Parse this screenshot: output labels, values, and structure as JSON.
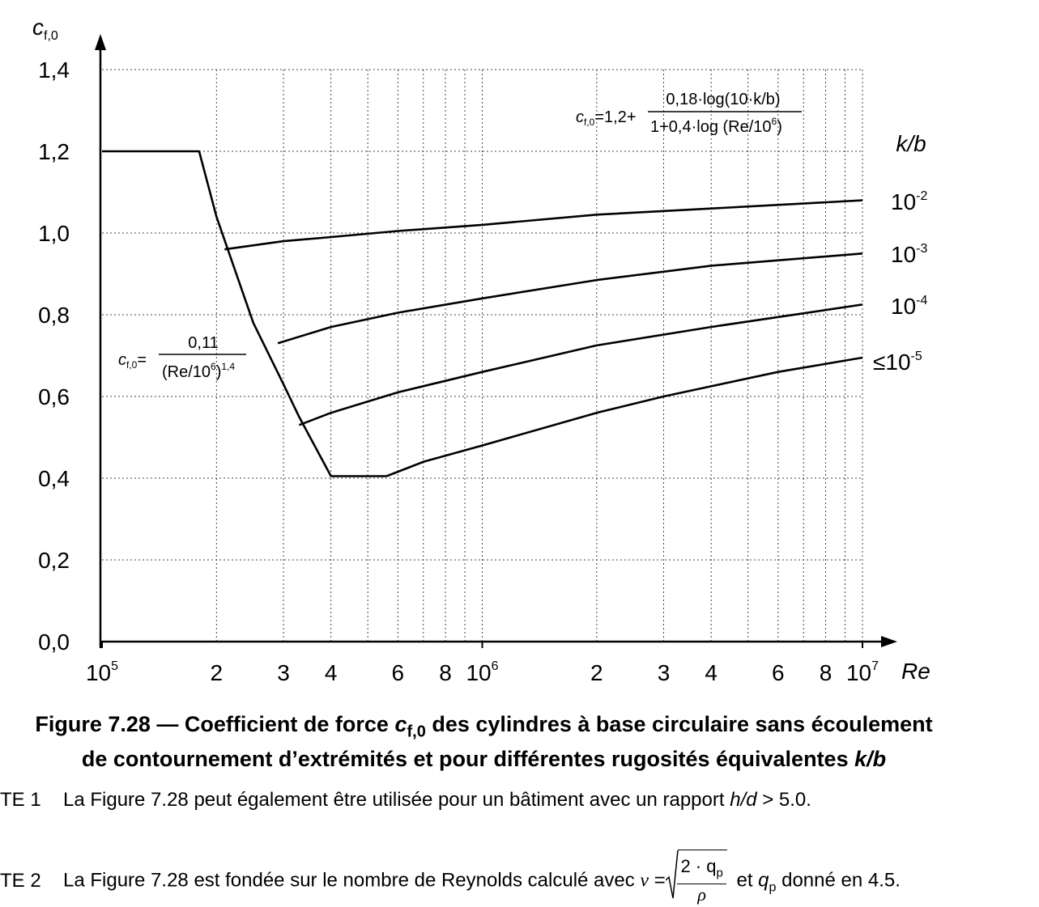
{
  "chart_data": {
    "type": "line",
    "x_scale": "log",
    "xlim": [
      100000,
      10000000
    ],
    "ylim": [
      0.0,
      1.4
    ],
    "grid": true,
    "ylabel_main": "c",
    "ylabel_sub": "f,0",
    "xlabel": "Re",
    "yticks": [
      {
        "value": 0.0,
        "label": "0,0"
      },
      {
        "value": 0.2,
        "label": "0,2"
      },
      {
        "value": 0.4,
        "label": "0,4"
      },
      {
        "value": 0.6,
        "label": "0,6"
      },
      {
        "value": 0.8,
        "label": "0,8"
      },
      {
        "value": 1.0,
        "label": "1,0"
      },
      {
        "value": 1.2,
        "label": "1,2"
      },
      {
        "value": 1.4,
        "label": "1,4"
      }
    ],
    "xticks": [
      {
        "value": 100000,
        "label": "10",
        "sup": "5"
      },
      {
        "value": 200000,
        "label": "2"
      },
      {
        "value": 300000,
        "label": "3"
      },
      {
        "value": 400000,
        "label": "4"
      },
      {
        "value": 600000,
        "label": "6"
      },
      {
        "value": 800000,
        "label": "8"
      },
      {
        "value": 1000000,
        "label": "10",
        "sup": "6"
      },
      {
        "value": 2000000,
        "label": "2"
      },
      {
        "value": 3000000,
        "label": "3"
      },
      {
        "value": 4000000,
        "label": "4"
      },
      {
        "value": 6000000,
        "label": "6"
      },
      {
        "value": 8000000,
        "label": "8"
      },
      {
        "value": 10000000,
        "label": "10",
        "sup": "7"
      }
    ],
    "xgrid_values": [
      100000,
      200000,
      300000,
      400000,
      500000,
      600000,
      700000,
      800000,
      900000,
      1000000,
      2000000,
      3000000,
      4000000,
      5000000,
      6000000,
      7000000,
      8000000,
      9000000,
      10000000
    ],
    "legend_title": "k/b",
    "series": [
      {
        "name_base": "10",
        "name_sup": "-2",
        "x": [
          210000,
          300000,
          400000,
          600000,
          1000000,
          2000000,
          4000000,
          10000000
        ],
        "y": [
          0.96,
          0.98,
          0.99,
          1.005,
          1.02,
          1.045,
          1.06,
          1.08
        ]
      },
      {
        "name_base": "10",
        "name_sup": "-3",
        "x": [
          290000,
          400000,
          600000,
          1000000,
          2000000,
          4000000,
          10000000
        ],
        "y": [
          0.73,
          0.77,
          0.805,
          0.84,
          0.885,
          0.92,
          0.95
        ]
      },
      {
        "name_base": "10",
        "name_sup": "-4",
        "x": [
          330000,
          400000,
          600000,
          1000000,
          2000000,
          4000000,
          10000000
        ],
        "y": [
          0.53,
          0.56,
          0.61,
          0.66,
          0.725,
          0.77,
          0.825
        ]
      },
      {
        "name_base": "≤10",
        "name_sup": "-5",
        "x": [
          560000,
          700000,
          1000000,
          2000000,
          3000000,
          4000000,
          6000000,
          10000000
        ],
        "y": [
          0.405,
          0.44,
          0.48,
          0.56,
          0.6,
          0.625,
          0.66,
          0.695
        ]
      },
      {
        "name_base": "",
        "name_sup": "",
        "x": [
          100000,
          180000,
          200000,
          250000,
          300000,
          330000,
          400000,
          560000
        ],
        "y": [
          1.2,
          1.2,
          1.04,
          0.78,
          0.63,
          0.55,
          0.405,
          0.405
        ]
      }
    ],
    "annotations": {
      "formula_top": {
        "lhs": "c",
        "lhs_sub": "f,0",
        "eq": "=1,2+",
        "num": "0,18·log(10·k/b)",
        "den": "1+0,4·log (Re/10",
        "den_sup": "6",
        "den_end": ")"
      },
      "formula_left": {
        "lhs": "c",
        "lhs_sub": "f,0",
        "eq": "=",
        "num": "0,11",
        "den": "(Re/10",
        "den_sup": "6",
        "den_end": ")",
        "den_exp": "1,4"
      }
    }
  },
  "caption": {
    "line1_a": "Figure 7.28 — Coefficient de force ",
    "line1_c": "c",
    "line1_sub": "f,0",
    "line1_b": " des cylindres à base circulaire sans écoulement",
    "line2_a": "de contournement d’extrémités et pour différentes rugosités équivalentes ",
    "line2_kb": "k/b"
  },
  "notes": {
    "n1_label": "TE 1",
    "n1_text": "La Figure 7.28 peut également être utilisée pour un bâtiment avec un rapport ",
    "n1_hd": "h/d",
    "n1_tail": " > 5.0.",
    "n2_label": "TE 2",
    "n2_text": "La Figure 7.28 est fondée sur le nombre de Reynolds calculé avec ",
    "n2_v": "v",
    "n2_eq": " = ",
    "n2_num": "2 · q",
    "n2_num_sub": "p",
    "n2_den": "ρ",
    "n2_after": " et ",
    "n2_q": "q",
    "n2_q_sub": "p",
    "n2_tail": " donné en 4.5."
  }
}
